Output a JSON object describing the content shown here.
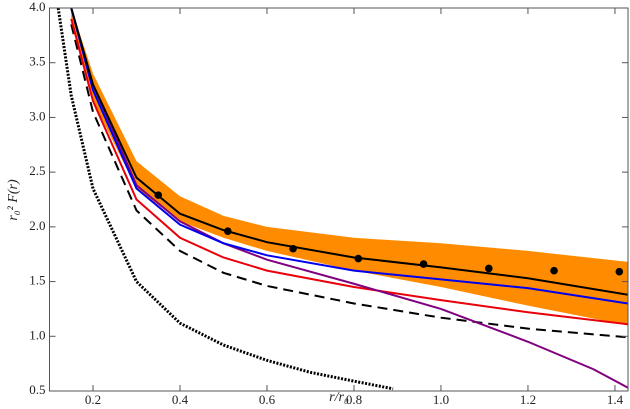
{
  "chart_data": {
    "type": "line",
    "x_label": "r/r₀",
    "y_label": "r₀² F(r)",
    "xlim": [
      0.1,
      1.43
    ],
    "ylim": [
      0.5,
      4.0
    ],
    "xticks": [
      0.2,
      0.4,
      0.6,
      0.8,
      {
        "value": 1,
        "label": "1.0"
      },
      1.2,
      1.4
    ],
    "yticks": [
      0.5,
      {
        "value": 1,
        "label": "1.0"
      },
      1.5,
      {
        "value": 2,
        "label": "2.0"
      },
      2.5,
      {
        "value": 3,
        "label": "3.0"
      },
      3.5,
      {
        "value": 4,
        "label": "4.0"
      }
    ],
    "band": {
      "color": "#ff8c00",
      "x": [
        0.15,
        0.2,
        0.3,
        0.4,
        0.5,
        0.6,
        0.8,
        1.0,
        1.2,
        1.43
      ],
      "upper": [
        4.0,
        3.4,
        2.6,
        2.28,
        2.1,
        2.0,
        1.9,
        1.85,
        1.78,
        1.68
      ],
      "lower": [
        3.9,
        3.15,
        2.35,
        2.05,
        1.9,
        1.78,
        1.6,
        1.45,
        1.28,
        1.1
      ]
    },
    "series": [
      {
        "color": "#000000",
        "style": "dotted",
        "x": [
          0.12,
          0.15,
          0.2,
          0.3,
          0.4,
          0.5,
          0.6,
          0.7,
          0.8,
          0.89
        ],
        "values": [
          4.0,
          3.2,
          2.35,
          1.5,
          1.12,
          0.92,
          0.78,
          0.67,
          0.59,
          0.52
        ]
      },
      {
        "color": "#000000",
        "style": "dashed",
        "x": [
          0.15,
          0.2,
          0.3,
          0.4,
          0.5,
          0.6,
          0.8,
          1.0,
          1.2,
          1.43
        ],
        "values": [
          3.85,
          3.05,
          2.15,
          1.78,
          1.58,
          1.46,
          1.3,
          1.17,
          1.07,
          0.99
        ]
      },
      {
        "color": "#e8000b",
        "style": "solid",
        "x": [
          0.15,
          0.2,
          0.3,
          0.4,
          0.5,
          0.6,
          0.8,
          1.0,
          1.2,
          1.43
        ],
        "values": [
          3.9,
          3.15,
          2.25,
          1.9,
          1.72,
          1.6,
          1.45,
          1.33,
          1.22,
          1.11
        ]
      },
      {
        "color": "#800080",
        "style": "solid",
        "x": [
          0.15,
          0.2,
          0.3,
          0.4,
          0.5,
          0.6,
          0.8,
          1.0,
          1.2,
          1.35,
          1.43
        ],
        "values": [
          4.0,
          3.3,
          2.38,
          2.05,
          1.85,
          1.7,
          1.48,
          1.25,
          0.95,
          0.7,
          0.53
        ]
      },
      {
        "color": "#0000ee",
        "style": "solid",
        "x": [
          0.15,
          0.2,
          0.3,
          0.4,
          0.5,
          0.6,
          0.8,
          1.0,
          1.2,
          1.43
        ],
        "values": [
          4.0,
          3.25,
          2.35,
          2.02,
          1.85,
          1.74,
          1.6,
          1.52,
          1.44,
          1.3
        ]
      },
      {
        "color": "#000000",
        "style": "solid",
        "x": [
          0.15,
          0.2,
          0.3,
          0.4,
          0.5,
          0.6,
          0.8,
          1.0,
          1.2,
          1.43
        ],
        "values": [
          4.0,
          3.3,
          2.45,
          2.12,
          1.97,
          1.86,
          1.72,
          1.63,
          1.53,
          1.38
        ]
      },
      {
        "color": "#000000",
        "style": "markers",
        "x": [
          0.35,
          0.51,
          0.66,
          0.81,
          0.96,
          1.11,
          1.26,
          1.41
        ],
        "values": [
          2.29,
          1.96,
          1.8,
          1.71,
          1.66,
          1.62,
          1.6,
          1.59
        ]
      }
    ]
  }
}
